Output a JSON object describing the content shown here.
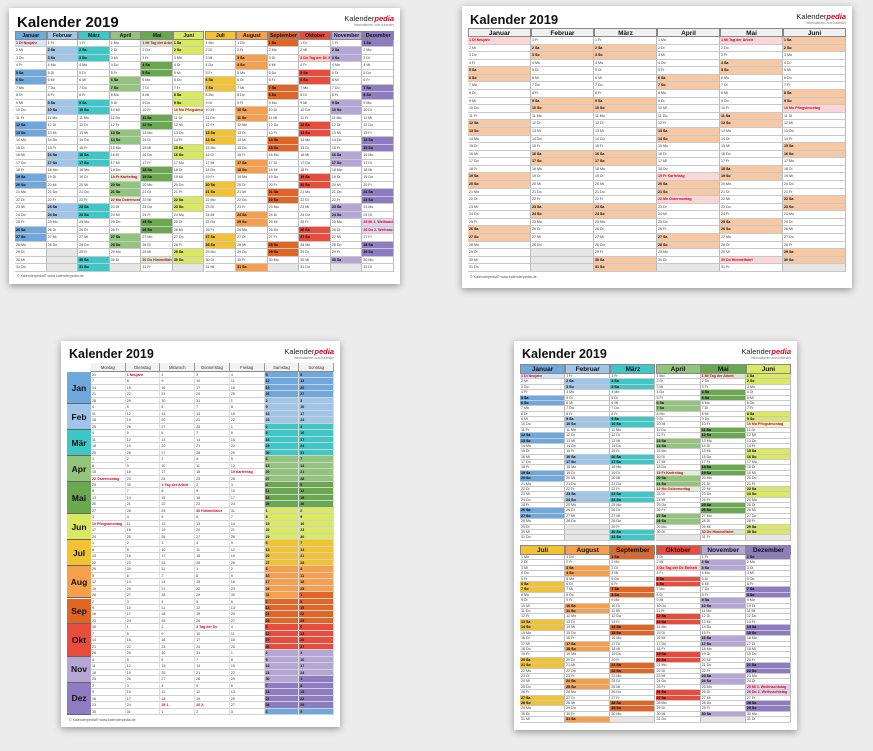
{
  "brand": {
    "name_a": "Kalender",
    "name_b": "pedia",
    "tagline": "Informationen zum Kalender"
  },
  "footer": "© Kalenderpedia®   www.kalenderpedia.de",
  "year": 2019,
  "weekday_abbr": [
    "Mo",
    "Di",
    "Mi",
    "Do",
    "Fr",
    "Sa",
    "So"
  ],
  "months": [
    {
      "name": "Januar",
      "short": "Jan",
      "color": "#6fa8dc",
      "tint": "#d4e6f7"
    },
    {
      "name": "Februar",
      "short": "Feb",
      "color": "#9fc5e8",
      "tint": "#e3effa"
    },
    {
      "name": "März",
      "short": "Mär",
      "color": "#3dc7c7",
      "tint": "#cdf1f1"
    },
    {
      "name": "April",
      "short": "Apr",
      "color": "#93c47d",
      "tint": "#def0d5"
    },
    {
      "name": "Mai",
      "short": "Mai",
      "color": "#6aa84f",
      "tint": "#d3ead0"
    },
    {
      "name": "Juni",
      "short": "Jun",
      "color": "#d9ea62",
      "tint": "#f3f8cf"
    },
    {
      "name": "Juli",
      "short": "Jul",
      "color": "#f1c232",
      "tint": "#fbeec3"
    },
    {
      "name": "August",
      "short": "Aug",
      "color": "#f6a04d",
      "tint": "#fde2c6"
    },
    {
      "name": "September",
      "short": "Sep",
      "color": "#e06626",
      "tint": "#f8d2bd"
    },
    {
      "name": "Oktober",
      "short": "Okt",
      "color": "#e74c3c",
      "tint": "#f9cdc8"
    },
    {
      "name": "November",
      "short": "Nov",
      "color": "#b4a7d6",
      "tint": "#e8e3f5"
    },
    {
      "name": "Dezember",
      "short": "Dez",
      "color": "#8e7cc3",
      "tint": "#ddd6f0"
    }
  ],
  "sheets": [
    {
      "title": "Kalender 2019",
      "layout": "full-year-columns"
    },
    {
      "title": "Kalender 2019",
      "layout": "half-year-columns"
    },
    {
      "title": "Kalender 2019",
      "layout": "week-rows",
      "week_headers": [
        "Montag",
        "Dienstag",
        "Mittwoch",
        "Donnerstag",
        "Freitag",
        "Samstag",
        "Sonntag"
      ]
    },
    {
      "title": "Kalender 2019",
      "layout": "two-half-years"
    }
  ],
  "holidays": [
    {
      "m": 0,
      "d": 1,
      "label": "Neujahr"
    },
    {
      "m": 3,
      "d": 19,
      "label": "Karfreitag"
    },
    {
      "m": 3,
      "d": 22,
      "label": "Ostermontag"
    },
    {
      "m": 4,
      "d": 1,
      "label": "Tag der Arbeit"
    },
    {
      "m": 4,
      "d": 30,
      "label": "Himmelfahrt"
    },
    {
      "m": 5,
      "d": 10,
      "label": "Pfingstmontag"
    },
    {
      "m": 9,
      "d": 3,
      "label": "Tag der Dt. Einheit"
    },
    {
      "m": 11,
      "d": 25,
      "label": "1. Weihnachtstag"
    },
    {
      "m": 11,
      "d": 26,
      "label": "2. Weihnachtstag"
    }
  ]
}
